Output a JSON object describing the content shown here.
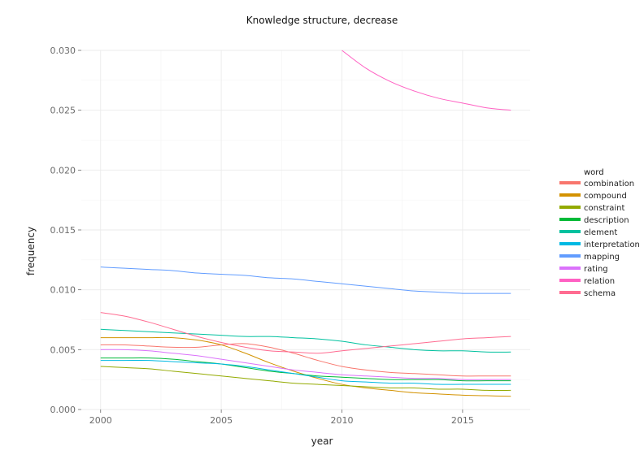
{
  "chart_data": {
    "type": "line",
    "title": "Knowledge structure, decrease",
    "xlabel": "year",
    "ylabel": "frequency",
    "xlim": [
      1999.2,
      2017.8
    ],
    "ylim": [
      0.0,
      0.03
    ],
    "x_ticks": [
      2000,
      2005,
      2010,
      2015
    ],
    "x_tick_labels": [
      "2000",
      "2005",
      "2010",
      "2015"
    ],
    "y_ticks": [
      0.0,
      0.005,
      0.01,
      0.015,
      0.02,
      0.025,
      0.03
    ],
    "y_tick_labels": [
      "0.000",
      "0.005",
      "0.010",
      "0.015",
      "0.020",
      "0.025",
      "0.030"
    ],
    "grid": true,
    "legend": {
      "title": "word",
      "position": "right"
    },
    "x": [
      2000,
      2001,
      2002,
      2003,
      2004,
      2005,
      2006,
      2007,
      2008,
      2009,
      2010,
      2011,
      2012,
      2013,
      2014,
      2015,
      2016,
      2017
    ],
    "series": [
      {
        "name": "combination",
        "color": "#F8766D",
        "values": [
          0.0054,
          0.0054,
          0.0053,
          0.0052,
          0.0052,
          0.0054,
          0.0055,
          0.0052,
          0.0047,
          0.0041,
          0.0036,
          0.0033,
          0.0031,
          0.003,
          0.0029,
          0.0028,
          0.0028,
          0.0028
        ]
      },
      {
        "name": "compound",
        "color": "#D39200",
        "values": [
          0.006,
          0.006,
          0.006,
          0.006,
          0.0058,
          0.0054,
          0.0047,
          0.0039,
          0.0032,
          0.0026,
          0.0021,
          0.0018,
          0.0016,
          0.0014,
          0.0013,
          0.0012,
          0.00115,
          0.0011
        ]
      },
      {
        "name": "constraint",
        "color": "#93AA00",
        "values": [
          0.0036,
          0.0035,
          0.0034,
          0.0032,
          0.003,
          0.0028,
          0.0026,
          0.0024,
          0.0022,
          0.0021,
          0.002,
          0.0019,
          0.0018,
          0.0018,
          0.0017,
          0.0017,
          0.0016,
          0.0016
        ]
      },
      {
        "name": "description",
        "color": "#00BA38",
        "values": [
          0.0043,
          0.0043,
          0.0043,
          0.0042,
          0.004,
          0.0038,
          0.0035,
          0.0032,
          0.003,
          0.0028,
          0.0027,
          0.0026,
          0.0025,
          0.0025,
          0.0025,
          0.0024,
          0.0024,
          0.0024
        ]
      },
      {
        "name": "element",
        "color": "#00C19F",
        "values": [
          0.0067,
          0.0066,
          0.0065,
          0.0064,
          0.0063,
          0.0062,
          0.0061,
          0.0061,
          0.006,
          0.0059,
          0.0057,
          0.0054,
          0.0052,
          0.005,
          0.0049,
          0.0049,
          0.0048,
          0.0048
        ]
      },
      {
        "name": "interpretation",
        "color": "#00B9E3",
        "values": [
          0.0041,
          0.0041,
          0.0041,
          0.004,
          0.0039,
          0.0038,
          0.0036,
          0.0033,
          0.003,
          0.0027,
          0.0024,
          0.0023,
          0.0022,
          0.0022,
          0.0021,
          0.0021,
          0.0021,
          0.0021
        ]
      },
      {
        "name": "mapping",
        "color": "#619CFF",
        "values": [
          0.0119,
          0.0118,
          0.0117,
          0.0116,
          0.0114,
          0.0113,
          0.0112,
          0.011,
          0.0109,
          0.0107,
          0.0105,
          0.0103,
          0.0101,
          0.0099,
          0.0098,
          0.0097,
          0.0097,
          0.0097
        ]
      },
      {
        "name": "rating",
        "color": "#DB72FB",
        "values": [
          0.005,
          0.005,
          0.0049,
          0.0047,
          0.0045,
          0.0042,
          0.0039,
          0.0036,
          0.0033,
          0.0031,
          0.0029,
          0.0028,
          0.0027,
          0.0026,
          0.0026,
          0.0025,
          0.0025,
          0.0025
        ]
      },
      {
        "name": "relation",
        "color": "#FF61C3",
        "values": [
          null,
          null,
          null,
          null,
          null,
          null,
          null,
          null,
          null,
          null,
          0.03,
          0.0285,
          0.0274,
          0.0266,
          0.026,
          0.0256,
          0.0252,
          0.025
        ]
      },
      {
        "name": "schema",
        "color": "#FF6C91",
        "values": [
          0.0081,
          0.0078,
          0.0073,
          0.0067,
          0.0061,
          0.0056,
          0.0052,
          0.0049,
          0.0048,
          0.0047,
          0.0049,
          0.0051,
          0.0053,
          0.0055,
          0.0057,
          0.0059,
          0.006,
          0.0061
        ]
      }
    ]
  }
}
